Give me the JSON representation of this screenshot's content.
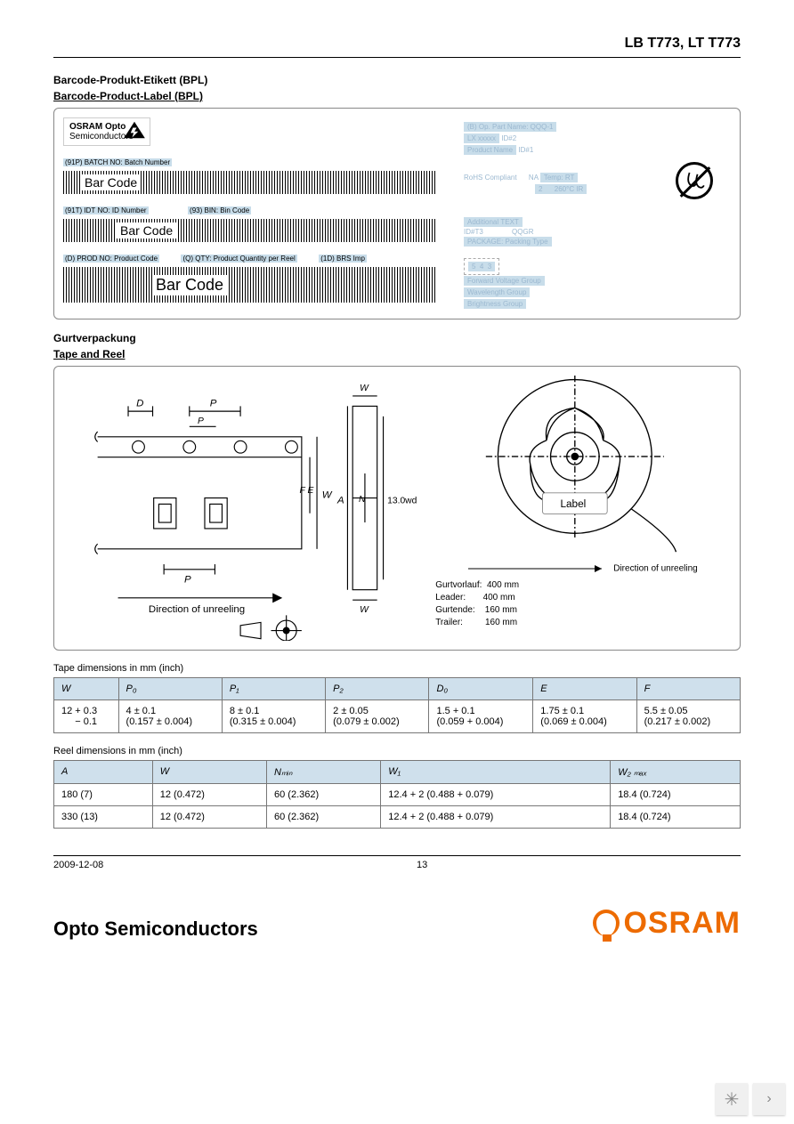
{
  "header": {
    "title": "LB T773, LT T773"
  },
  "sec1": {
    "de": "Barcode-Produkt-Etikett (BPL)",
    "en": "Barcode-Product-Label (BPL)"
  },
  "bpl": {
    "company": "OSRAM Opto",
    "sub": "Semiconductors",
    "b1_lbl": "(91P) BATCH NO: Batch Number",
    "bars_text": "Bar Code",
    "b2_lbl1": "(91T) IDT NO: ID Number",
    "b2_lbl2": "(93) BIN: Bin Code",
    "b3_lbl1": "(D) PROD NO: Product Code",
    "b3_lbl2": "(Q) QTY: Product Quantity per Reel",
    "b3_lbl3": "(1D) BRS Imp",
    "r1a": "(B) Op. Part Name: QQQ-1",
    "r1b": "LX xxxxx",
    "r1c": "ID#2",
    "r2": "Product Name",
    "r2b": "ID#1",
    "r3a": "RoHS Compliant      NA",
    "r3b": "Temp: RT",
    "r3c": "2      260°C IR",
    "r4": "Additional TEXT",
    "r5a": "ID#T3",
    "r5b": "QQGR",
    "r6": "PACKAGE: Packing Type",
    "r7a": "5  4  3",
    "r7b": "Forward Voltage Group",
    "r7c": "Wavelength Group",
    "r7d": "Brightness Group"
  },
  "sec2": {
    "de": "Gurtverpackung",
    "en": "Tape and Reel"
  },
  "reel": {
    "dir": "Direction of unreeling",
    "label": "Label",
    "meta": [
      [
        "Gurtvorlauf:",
        "400 mm"
      ],
      [
        "Leader:",
        "400 mm"
      ],
      [
        "Gurtende:",
        "160 mm"
      ],
      [
        "Trailer:",
        "160 mm"
      ]
    ]
  },
  "tape_table": {
    "caption": "Tape dimensions in mm (inch)",
    "cols": [
      "W",
      "P₀",
      "P₁",
      "P₂",
      "D₀",
      "E",
      "F"
    ],
    "row": [
      "12 + 0.3<br>     − 0.1",
      "4 ± 0.1<br>(0.157 ± 0.004)",
      "8 ± 0.1<br>(0.315 ± 0.004)",
      "2 ± 0.05<br>(0.079 ± 0.002)",
      "1.5 + 0.1<br>(0.059 + 0.004)",
      "1.75 ± 0.1<br>(0.069 ± 0.004)",
      "5.5 ± 0.05<br>(0.217 ± 0.002)"
    ]
  },
  "reel_table": {
    "caption": "Reel dimensions in mm (inch)",
    "cols": [
      "A",
      "W",
      "Nₘᵢₙ",
      "W₁",
      "W₂ ₘₐₓ"
    ],
    "rows": [
      [
        "180 (7)",
        "12 (0.472)",
        "60 (2.362)",
        "12.4 + 2 (0.488 + 0.079)",
        "18.4 (0.724)"
      ],
      [
        "330 (13)",
        "12 (0.472)",
        "60 (2.362)",
        "12.4 + 2 (0.488 + 0.079)",
        "18.4 (0.724)"
      ]
    ]
  },
  "footer": {
    "date": "2009-12-08",
    "page": "13"
  },
  "brand": {
    "text": "Opto Semiconductors",
    "logo": "OSRAM"
  }
}
